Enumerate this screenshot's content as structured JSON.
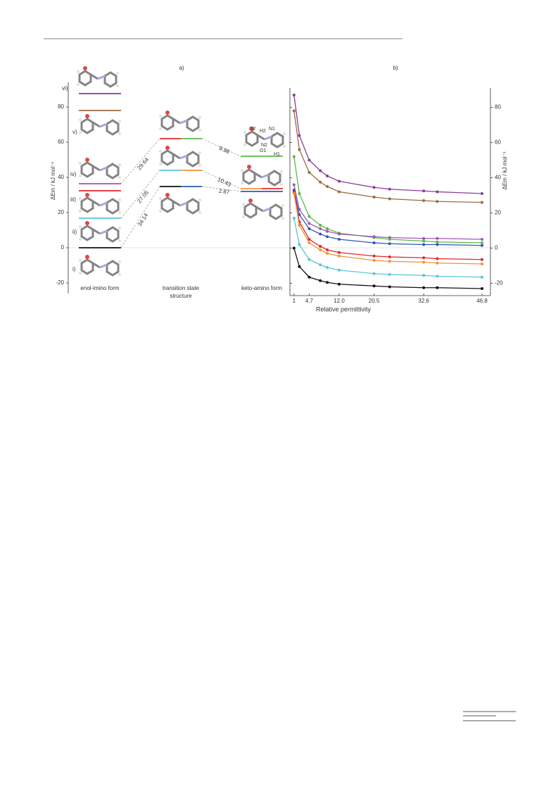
{
  "chart_data": [
    {
      "type": "energy-levels",
      "panel_label": "a)",
      "ylabel": "ΔEm  / kJ mol⁻¹",
      "ylim": [
        -26,
        94
      ],
      "yticks": [
        -20,
        0,
        20,
        40,
        60,
        80
      ],
      "columns": [
        "enol-imino form",
        "transition state structure",
        "keto-amino form"
      ],
      "levels": [
        {
          "column": 0,
          "value": 87.6,
          "colors": [
            "#8b3a9c"
          ]
        },
        {
          "column": 0,
          "value": 78,
          "colors": [
            "#9c6b3e"
          ]
        },
        {
          "column": 0,
          "value": 36.4,
          "colors": [
            "#a155b9"
          ]
        },
        {
          "column": 0,
          "value": 32.4,
          "colors": [
            "#e0282e"
          ]
        },
        {
          "column": 0,
          "value": 16.8,
          "colors": [
            "#5bc5d6"
          ]
        },
        {
          "column": 0,
          "value": 0,
          "colors": [
            "#111111"
          ]
        },
        {
          "column": 1,
          "value": 62,
          "colors": [
            "#e0282e",
            "#59b848"
          ]
        },
        {
          "column": 1,
          "value": 44,
          "colors": [
            "#5bc5d6",
            "#f39233"
          ]
        },
        {
          "column": 1,
          "value": 34.8,
          "colors": [
            "#111111",
            "#2a5ab8"
          ]
        },
        {
          "column": 2,
          "value": 52,
          "colors": [
            "#59b848"
          ]
        },
        {
          "column": 2,
          "value": 33.6,
          "colors": [
            "#f39233",
            "#e0282e"
          ]
        },
        {
          "column": 2,
          "value": 32,
          "colors": [
            "#2a5ab8"
          ]
        }
      ],
      "barriers": [
        29.64,
        27.05,
        34.14,
        9.98,
        10.43,
        2.87
      ],
      "structure_labels": [
        "vi)",
        "v)",
        "iv)",
        "iii)",
        "ii)",
        "i)"
      ],
      "atom_labels": [
        "O2",
        "H2",
        "N1",
        "N2",
        "O1",
        "H1"
      ]
    },
    {
      "type": "line",
      "panel_label": "b)",
      "xlabel": "Relative permittivity",
      "ylabel": "ΔEm  / kJ mol⁻¹",
      "x": [
        1,
        2.3,
        4.7,
        7.4,
        9.1,
        12.0,
        20.5,
        24.3,
        32.6,
        35.9,
        46.8
      ],
      "xlim": [
        0,
        46.8
      ],
      "xticks": [
        1,
        4.7,
        {
          "value": 12,
          "label": "12.0"
        },
        20.5,
        32.6,
        46.8
      ],
      "ylim": [
        -27,
        91
      ],
      "yticks": [
        -20,
        0,
        20,
        40,
        60,
        80
      ],
      "series": [
        {
          "color": "#8b3a9c",
          "values": [
            87,
            64,
            50,
            44,
            41,
            38,
            34.5,
            33.5,
            32.5,
            32,
            31
          ]
        },
        {
          "color": "#9c6b3e",
          "values": [
            78,
            56,
            43,
            37.5,
            35,
            32,
            29,
            28,
            27,
            26.5,
            26
          ]
        },
        {
          "color": "#59b848",
          "values": [
            52,
            31,
            18,
            13,
            11,
            8.5,
            6,
            5,
            4,
            3.5,
            3
          ]
        },
        {
          "color": "#a155b9",
          "values": [
            36,
            22,
            14,
            11,
            9.5,
            8,
            6.5,
            6,
            5.5,
            5.5,
            5
          ]
        },
        {
          "color": "#2a5ab8",
          "values": [
            33,
            19,
            11,
            8,
            6.5,
            5,
            3,
            2.5,
            2,
            2,
            1.5
          ]
        },
        {
          "color": "#e0282e",
          "values": [
            32,
            15,
            5,
            1,
            -1,
            -2.5,
            -4.5,
            -5,
            -5.5,
            -6,
            -6.5
          ]
        },
        {
          "color": "#f39233",
          "values": [
            31,
            13,
            3,
            -1,
            -3,
            -4.5,
            -7,
            -7.5,
            -8,
            -8.5,
            -9
          ]
        },
        {
          "color": "#5bc5d6",
          "values": [
            17,
            2,
            -6.5,
            -9.5,
            -11,
            -12.5,
            -14.5,
            -15,
            -15.5,
            -16,
            -16.5
          ]
        },
        {
          "color": "#111111",
          "values": [
            0,
            -10.5,
            -16.5,
            -18.5,
            -19.5,
            -20.5,
            -21.5,
            -22,
            -22.5,
            -22.5,
            -23
          ]
        }
      ]
    }
  ]
}
